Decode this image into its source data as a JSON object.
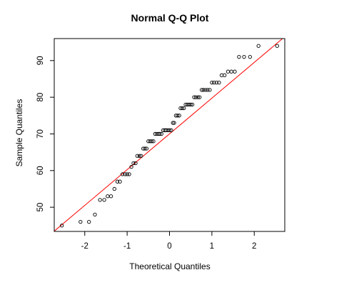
{
  "chart_data": {
    "type": "scatter",
    "title": "Normal Q-Q Plot",
    "xlabel": "Theoretical Quantiles",
    "ylabel": "Sample Quantiles",
    "xlim": [
      -2.72,
      2.72
    ],
    "ylim": [
      43.4,
      96.0
    ],
    "xticks": [
      -2,
      -1,
      0,
      1,
      2
    ],
    "yticks": [
      50,
      60,
      70,
      80,
      90
    ],
    "grid": false,
    "reference_line": {
      "intercept": 70.0,
      "slope": 9.75,
      "color": "#ff0000"
    },
    "point_color": "#000000",
    "points": [
      {
        "x": -2.54,
        "y": 45
      },
      {
        "x": -2.1,
        "y": 46
      },
      {
        "x": -1.9,
        "y": 46
      },
      {
        "x": -1.76,
        "y": 48
      },
      {
        "x": -1.64,
        "y": 52
      },
      {
        "x": -1.54,
        "y": 52
      },
      {
        "x": -1.46,
        "y": 53
      },
      {
        "x": -1.38,
        "y": 53
      },
      {
        "x": -1.3,
        "y": 55
      },
      {
        "x": -1.23,
        "y": 57
      },
      {
        "x": -1.17,
        "y": 57
      },
      {
        "x": -1.11,
        "y": 59
      },
      {
        "x": -1.05,
        "y": 59
      },
      {
        "x": -1.0,
        "y": 59
      },
      {
        "x": -0.95,
        "y": 59
      },
      {
        "x": -0.9,
        "y": 61
      },
      {
        "x": -0.85,
        "y": 62
      },
      {
        "x": -0.8,
        "y": 62
      },
      {
        "x": -0.76,
        "y": 64
      },
      {
        "x": -0.71,
        "y": 64
      },
      {
        "x": -0.67,
        "y": 64
      },
      {
        "x": -0.62,
        "y": 66
      },
      {
        "x": -0.58,
        "y": 66
      },
      {
        "x": -0.54,
        "y": 66
      },
      {
        "x": -0.5,
        "y": 68
      },
      {
        "x": -0.46,
        "y": 68
      },
      {
        "x": -0.42,
        "y": 68
      },
      {
        "x": -0.38,
        "y": 68
      },
      {
        "x": -0.34,
        "y": 70
      },
      {
        "x": -0.3,
        "y": 70
      },
      {
        "x": -0.26,
        "y": 70
      },
      {
        "x": -0.23,
        "y": 70
      },
      {
        "x": -0.19,
        "y": 70
      },
      {
        "x": -0.15,
        "y": 71
      },
      {
        "x": -0.11,
        "y": 71
      },
      {
        "x": -0.08,
        "y": 71
      },
      {
        "x": -0.04,
        "y": 71
      },
      {
        "x": 0.0,
        "y": 71
      },
      {
        "x": 0.04,
        "y": 71
      },
      {
        "x": 0.08,
        "y": 73
      },
      {
        "x": 0.11,
        "y": 73
      },
      {
        "x": 0.15,
        "y": 75
      },
      {
        "x": 0.19,
        "y": 75
      },
      {
        "x": 0.23,
        "y": 75
      },
      {
        "x": 0.26,
        "y": 77
      },
      {
        "x": 0.3,
        "y": 77
      },
      {
        "x": 0.34,
        "y": 77
      },
      {
        "x": 0.38,
        "y": 78
      },
      {
        "x": 0.42,
        "y": 78
      },
      {
        "x": 0.46,
        "y": 78
      },
      {
        "x": 0.5,
        "y": 78
      },
      {
        "x": 0.54,
        "y": 78
      },
      {
        "x": 0.58,
        "y": 80
      },
      {
        "x": 0.62,
        "y": 80
      },
      {
        "x": 0.67,
        "y": 80
      },
      {
        "x": 0.71,
        "y": 80
      },
      {
        "x": 0.76,
        "y": 82
      },
      {
        "x": 0.8,
        "y": 82
      },
      {
        "x": 0.85,
        "y": 82
      },
      {
        "x": 0.9,
        "y": 82
      },
      {
        "x": 0.95,
        "y": 82
      },
      {
        "x": 1.0,
        "y": 84
      },
      {
        "x": 1.05,
        "y": 84
      },
      {
        "x": 1.11,
        "y": 84
      },
      {
        "x": 1.17,
        "y": 84
      },
      {
        "x": 1.23,
        "y": 86
      },
      {
        "x": 1.3,
        "y": 86
      },
      {
        "x": 1.38,
        "y": 87
      },
      {
        "x": 1.46,
        "y": 87
      },
      {
        "x": 1.54,
        "y": 87
      },
      {
        "x": 1.64,
        "y": 91
      },
      {
        "x": 1.76,
        "y": 91
      },
      {
        "x": 1.9,
        "y": 91
      },
      {
        "x": 2.1,
        "y": 94
      },
      {
        "x": 2.54,
        "y": 94
      }
    ]
  }
}
